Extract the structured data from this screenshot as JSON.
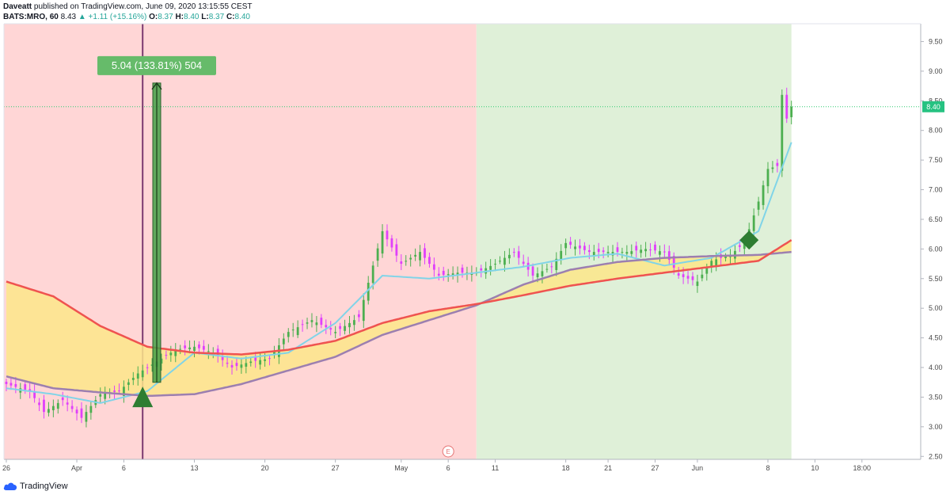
{
  "header": {
    "author": "Daveatt",
    "published_text": "published on TradingView.com, June 09, 2020 13:15:55 CEST",
    "symbol": "BATS:MRO, 60",
    "last_price": "8.43",
    "change": "+1.11 (+15.16%)",
    "o_label": "O:",
    "o_value": "8.37",
    "h_label": "H:",
    "h_value": "8.40",
    "l_label": "L:",
    "l_value": "8.37",
    "c_label": "C:",
    "c_value": "8.40"
  },
  "footer": {
    "brand": "TradingView"
  },
  "colors": {
    "bear_zone": "#ffd6d6",
    "bull_zone": "#dff0d8",
    "cloud_fill": "#fde68a",
    "slow_ma": "#ef5350",
    "fast_ma": "#9c7fb0",
    "signal_ma": "#80d4e8",
    "candle_up": "#4caf50",
    "candle_down": "#e040fb",
    "measure": "#43a047",
    "price_line": "#2ecc71",
    "vline": "#7b3a70"
  },
  "chart_data": {
    "type": "candlestick",
    "y_ticks": [
      "9.50",
      "9.00",
      "8.50",
      "8.00",
      "7.50",
      "7.00",
      "6.50",
      "6.00",
      "5.50",
      "5.00",
      "4.50",
      "4.00",
      "3.50",
      "3.00",
      "2.50"
    ],
    "y_tick_values": [
      9.5,
      9.0,
      8.5,
      8.0,
      7.5,
      7.0,
      6.5,
      6.0,
      5.5,
      5.0,
      4.5,
      4.0,
      3.5,
      3.0,
      2.5
    ],
    "ylim": [
      2.45,
      9.8
    ],
    "x_ticks": [
      "26",
      "Apr",
      "6",
      "13",
      "20",
      "27",
      "May",
      "6",
      "11",
      "18",
      "21",
      "27",
      "Jun",
      "8",
      "10",
      "18:00"
    ],
    "x_tick_index": [
      0,
      15,
      25,
      40,
      55,
      70,
      84,
      94,
      104,
      119,
      128,
      138,
      147,
      162,
      172,
      182
    ],
    "x_count": 195,
    "current_price": "8.40",
    "current_price_value": 8.4,
    "measure_label": "5.04 (133.81%) 504",
    "earnings_marker": "E",
    "bear_zone_range": [
      0,
      100
    ],
    "bull_zone_range": [
      100,
      167
    ],
    "signal_up_index": 29,
    "signal_diamond_index": 158,
    "vline_index": 29,
    "slow_ma": [
      [
        0,
        5.45
      ],
      [
        10,
        5.2
      ],
      [
        20,
        4.7
      ],
      [
        30,
        4.35
      ],
      [
        40,
        4.25
      ],
      [
        50,
        4.22
      ],
      [
        60,
        4.3
      ],
      [
        70,
        4.45
      ],
      [
        80,
        4.75
      ],
      [
        90,
        4.95
      ],
      [
        100,
        5.07
      ],
      [
        110,
        5.22
      ],
      [
        120,
        5.38
      ],
      [
        130,
        5.5
      ],
      [
        140,
        5.6
      ],
      [
        150,
        5.7
      ],
      [
        160,
        5.8
      ],
      [
        167,
        6.15
      ]
    ],
    "fast_ma": [
      [
        0,
        3.85
      ],
      [
        10,
        3.65
      ],
      [
        20,
        3.58
      ],
      [
        30,
        3.52
      ],
      [
        40,
        3.55
      ],
      [
        50,
        3.72
      ],
      [
        60,
        3.95
      ],
      [
        70,
        4.18
      ],
      [
        80,
        4.55
      ],
      [
        90,
        4.8
      ],
      [
        100,
        5.05
      ],
      [
        110,
        5.4
      ],
      [
        120,
        5.65
      ],
      [
        130,
        5.78
      ],
      [
        140,
        5.85
      ],
      [
        150,
        5.88
      ],
      [
        160,
        5.9
      ],
      [
        167,
        5.95
      ]
    ],
    "signal_ma": [
      [
        0,
        3.65
      ],
      [
        10,
        3.55
      ],
      [
        20,
        3.4
      ],
      [
        30,
        3.6
      ],
      [
        40,
        4.25
      ],
      [
        50,
        4.15
      ],
      [
        60,
        4.25
      ],
      [
        70,
        4.75
      ],
      [
        80,
        5.55
      ],
      [
        90,
        5.5
      ],
      [
        100,
        5.6
      ],
      [
        110,
        5.7
      ],
      [
        120,
        5.85
      ],
      [
        130,
        5.92
      ],
      [
        140,
        5.72
      ],
      [
        150,
        5.85
      ],
      [
        160,
        6.3
      ],
      [
        167,
        7.8
      ]
    ],
    "closes": [
      [
        0,
        3.72
      ],
      [
        5,
        3.6
      ],
      [
        8,
        3.25
      ],
      [
        12,
        3.45
      ],
      [
        16,
        3.15
      ],
      [
        20,
        3.55
      ],
      [
        24,
        3.6
      ],
      [
        28,
        3.9
      ],
      [
        32,
        4.1
      ],
      [
        36,
        4.3
      ],
      [
        40,
        4.35
      ],
      [
        44,
        4.25
      ],
      [
        48,
        4.0
      ],
      [
        52,
        4.1
      ],
      [
        56,
        4.15
      ],
      [
        60,
        4.6
      ],
      [
        65,
        4.8
      ],
      [
        70,
        4.6
      ],
      [
        75,
        4.85
      ],
      [
        80,
        6.3
      ],
      [
        84,
        5.75
      ],
      [
        88,
        5.95
      ],
      [
        92,
        5.55
      ],
      [
        96,
        5.6
      ],
      [
        100,
        5.6
      ],
      [
        104,
        5.75
      ],
      [
        108,
        5.95
      ],
      [
        112,
        5.55
      ],
      [
        116,
        5.7
      ],
      [
        119,
        6.1
      ],
      [
        124,
        5.95
      ],
      [
        128,
        5.95
      ],
      [
        132,
        5.95
      ],
      [
        136,
        6.0
      ],
      [
        140,
        5.95
      ],
      [
        143,
        5.55
      ],
      [
        147,
        5.45
      ],
      [
        150,
        5.8
      ],
      [
        154,
        5.9
      ],
      [
        157,
        6.1
      ],
      [
        160,
        6.8
      ],
      [
        162,
        7.35
      ],
      [
        164,
        7.4
      ],
      [
        165,
        8.6
      ],
      [
        166,
        8.2
      ],
      [
        167,
        8.4
      ]
    ]
  }
}
